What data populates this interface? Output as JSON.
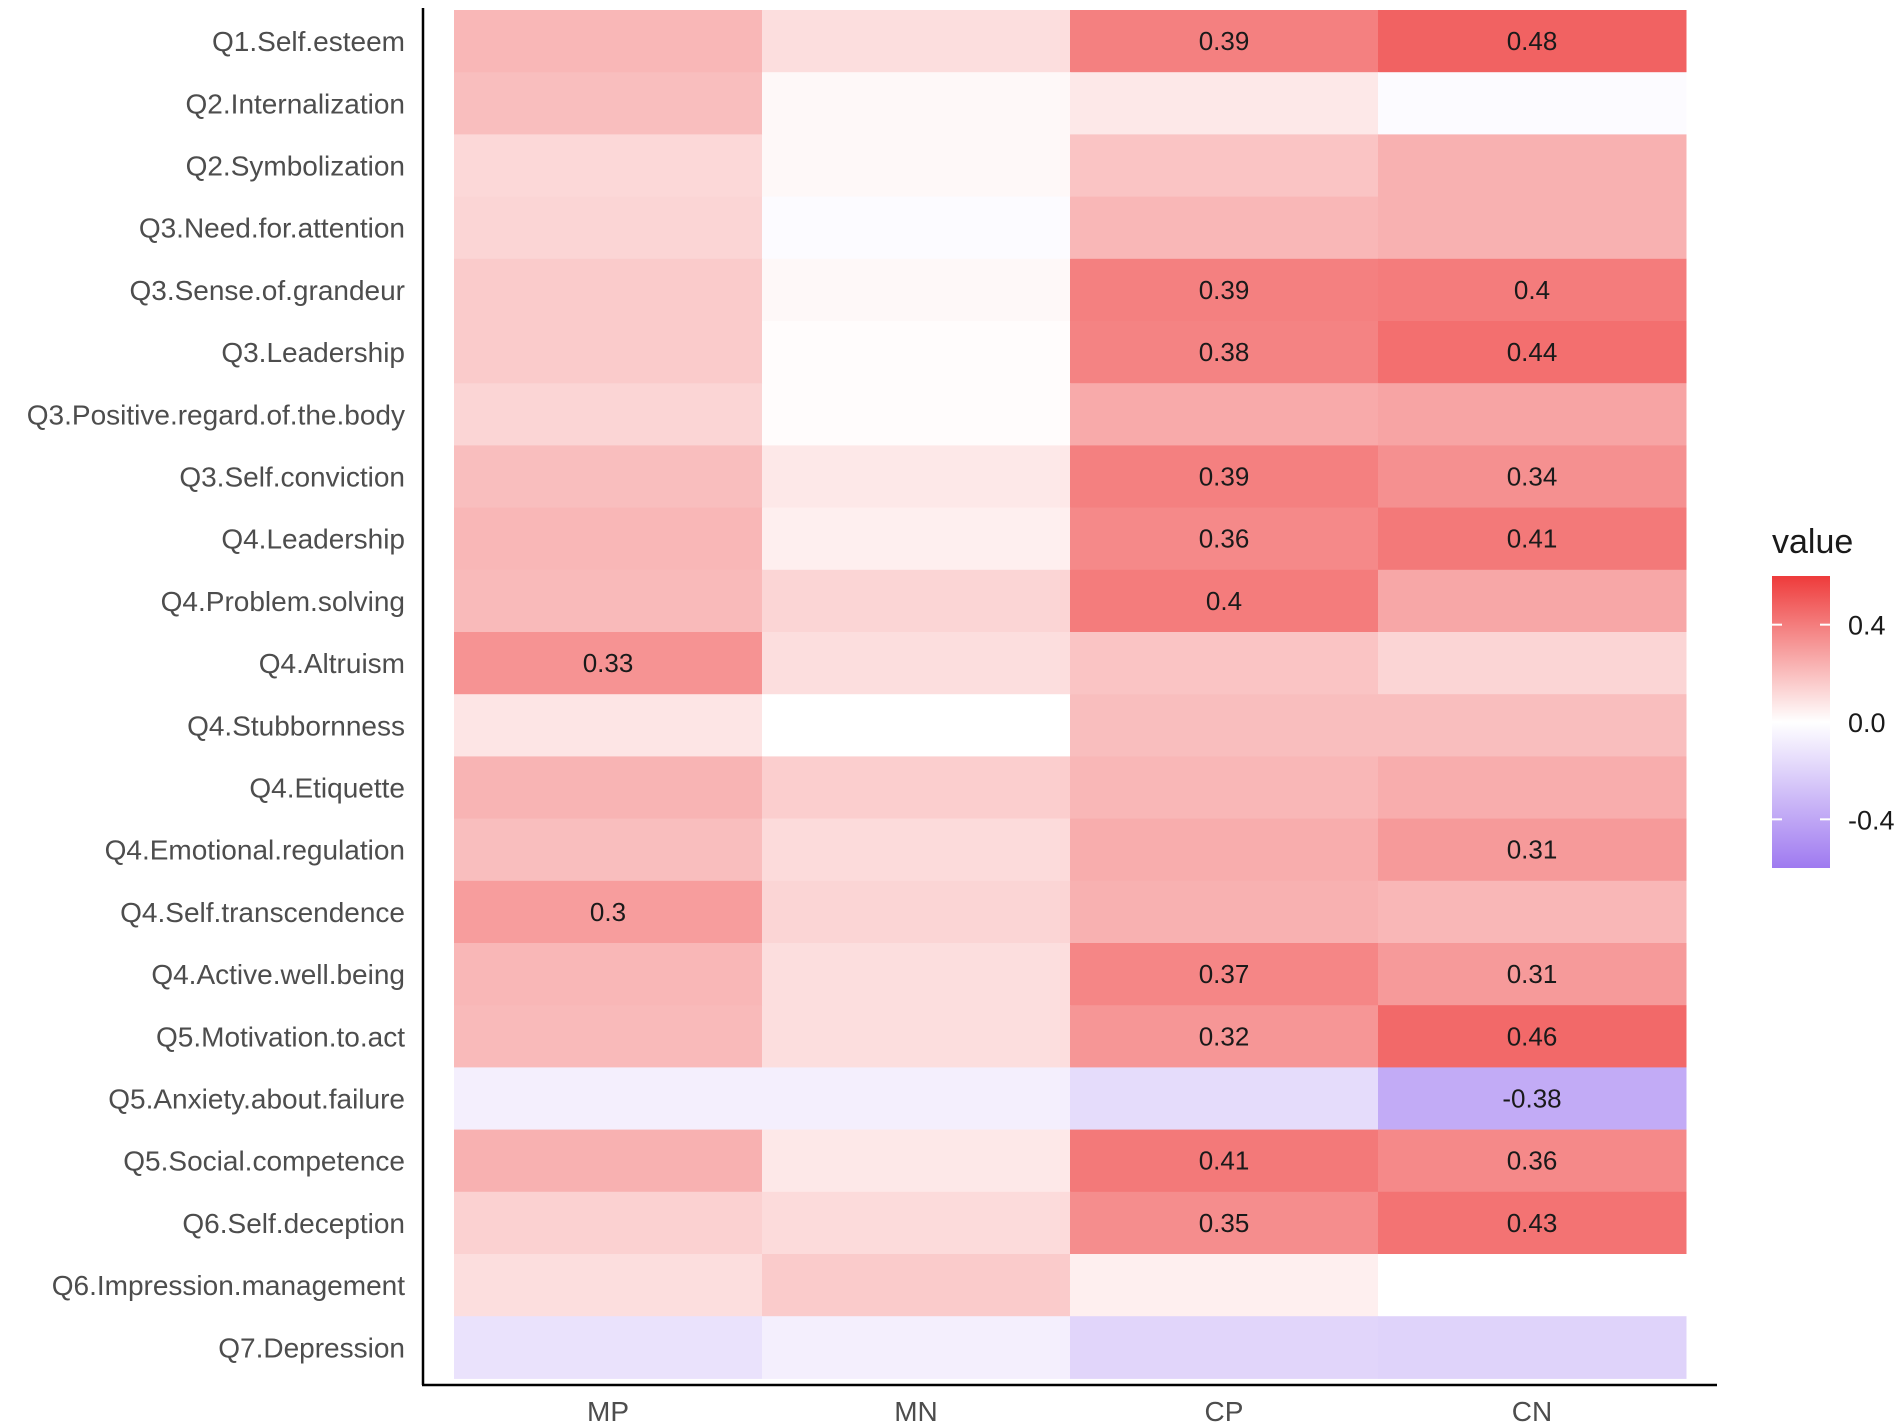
{
  "chart_data": {
    "type": "heatmap",
    "title": "",
    "xlabel": "",
    "ylabel": "",
    "columns": [
      "MP",
      "MN",
      "CP",
      "CN"
    ],
    "rows": [
      "Q1.Self.esteem",
      "Q2.Internalization",
      "Q2.Symbolization",
      "Q3.Need.for.attention",
      "Q3.Sense.of.grandeur",
      "Q3.Leadership",
      "Q3.Positive.regard.of.the.body",
      "Q3.Self.conviction",
      "Q4.Leadership",
      "Q4.Problem.solving",
      "Q4.Altruism",
      "Q4.Stubbornness",
      "Q4.Etiquette",
      "Q4.Emotional.regulation",
      "Q4.Self.transcendence",
      "Q4.Active.well.being",
      "Q5.Motivation.to.act",
      "Q5.Anxiety.about.failure",
      "Q5.Social.competence",
      "Q6.Self.deception",
      "Q6.Impression.management",
      "Q7.Depression"
    ],
    "values": [
      [
        0.22,
        0.1,
        0.39,
        0.48
      ],
      [
        0.2,
        0.02,
        0.07,
        -0.02
      ],
      [
        0.12,
        0.02,
        0.18,
        0.24
      ],
      [
        0.13,
        -0.02,
        0.22,
        0.24
      ],
      [
        0.16,
        0.02,
        0.39,
        0.4
      ],
      [
        0.16,
        0.01,
        0.38,
        0.44
      ],
      [
        0.13,
        0.01,
        0.26,
        0.28
      ],
      [
        0.2,
        0.07,
        0.39,
        0.34
      ],
      [
        0.22,
        0.05,
        0.36,
        0.41
      ],
      [
        0.21,
        0.13,
        0.4,
        0.27
      ],
      [
        0.33,
        0.1,
        0.18,
        0.13
      ],
      [
        0.08,
        0.0,
        0.2,
        0.2
      ],
      [
        0.23,
        0.15,
        0.22,
        0.25
      ],
      [
        0.2,
        0.11,
        0.25,
        0.31
      ],
      [
        0.3,
        0.13,
        0.24,
        0.22
      ],
      [
        0.22,
        0.1,
        0.37,
        0.31
      ],
      [
        0.21,
        0.1,
        0.32,
        0.46
      ],
      [
        -0.07,
        -0.07,
        -0.16,
        -0.38
      ],
      [
        0.24,
        0.07,
        0.41,
        0.36
      ],
      [
        0.14,
        0.11,
        0.35,
        0.43
      ],
      [
        0.1,
        0.16,
        0.05,
        0.0
      ],
      [
        -0.13,
        -0.07,
        -0.19,
        -0.2
      ]
    ],
    "labels": [
      [
        "",
        "",
        "0.39",
        "0.48"
      ],
      [
        "",
        "",
        "",
        ""
      ],
      [
        "",
        "",
        "",
        ""
      ],
      [
        "",
        "",
        "",
        ""
      ],
      [
        "",
        "",
        "0.39",
        "0.4"
      ],
      [
        "",
        "",
        "0.38",
        "0.44"
      ],
      [
        "",
        "",
        "",
        ""
      ],
      [
        "",
        "",
        "0.39",
        "0.34"
      ],
      [
        "",
        "",
        "0.36",
        "0.41"
      ],
      [
        "",
        "",
        "0.4",
        ""
      ],
      [
        "0.33",
        "",
        "",
        ""
      ],
      [
        "",
        "",
        "",
        ""
      ],
      [
        "",
        "",
        "",
        ""
      ],
      [
        "",
        "",
        "",
        "0.31"
      ],
      [
        "0.3",
        "",
        "",
        ""
      ],
      [
        "",
        "",
        "0.37",
        "0.31"
      ],
      [
        "",
        "",
        "0.32",
        "0.46"
      ],
      [
        "",
        "",
        "",
        "-0.38"
      ],
      [
        "",
        "",
        "0.41",
        "0.36"
      ],
      [
        "",
        "",
        "0.35",
        "0.43"
      ],
      [
        "",
        "",
        "",
        ""
      ],
      [
        "",
        "",
        "",
        ""
      ]
    ],
    "color_scale": {
      "low": "#9f7af0",
      "mid": "#ffffff",
      "high": "#ee3b3b",
      "domain": [
        -0.6,
        0.0,
        0.6
      ]
    },
    "legend": {
      "title": "value",
      "ticks": [
        0.4,
        0.0,
        -0.4
      ],
      "tick_labels": [
        "0.4",
        "0.0",
        "-0.4"
      ],
      "position": "right"
    },
    "axis_color": "#000000",
    "grid": false
  }
}
